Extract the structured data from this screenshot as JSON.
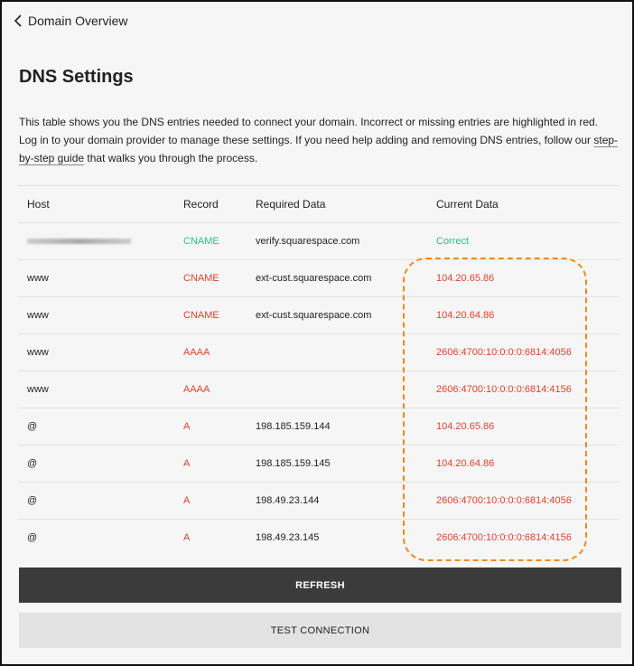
{
  "nav": {
    "back_label": "Domain Overview"
  },
  "page": {
    "title": "DNS Settings",
    "description_before": "This table shows you the DNS entries needed to connect your domain. Incorrect or missing entries are highlighted in red. Log in to your domain provider to manage these settings. If you need help adding and removing DNS entries, follow our ",
    "link_text": "step-by-step guide",
    "description_after": " that walks you through the process."
  },
  "colors": {
    "error": "#e0412d",
    "ok": "#2cbf7e",
    "highlight": "#f08a1c"
  },
  "table": {
    "headers": [
      "Host",
      "Record",
      "Required Data",
      "Current Data"
    ],
    "rows": [
      {
        "host": "",
        "host_redacted": true,
        "record": "CNAME",
        "required": "verify.squarespace.com",
        "current": "Correct",
        "status": "ok"
      },
      {
        "host": "www",
        "record": "CNAME",
        "required": "ext-cust.squarespace.com",
        "current": "104.20.65.86",
        "status": "error"
      },
      {
        "host": "www",
        "record": "CNAME",
        "required": "ext-cust.squarespace.com",
        "current": "104.20.64.86",
        "status": "error"
      },
      {
        "host": "www",
        "record": "AAAA",
        "required": "",
        "current": "2606:4700:10:0:0:0:6814:4056",
        "status": "error"
      },
      {
        "host": "www",
        "record": "AAAA",
        "required": "",
        "current": "2606:4700:10:0:0:0:6814:4156",
        "status": "error"
      },
      {
        "host": "@",
        "record": "A",
        "required": "198.185.159.144",
        "current": "104.20.65.86",
        "status": "error"
      },
      {
        "host": "@",
        "record": "A",
        "required": "198.185.159.145",
        "current": "104.20.64.86",
        "status": "error"
      },
      {
        "host": "@",
        "record": "A",
        "required": "198.49.23.144",
        "current": "2606:4700:10:0:0:0:6814:4056",
        "status": "error"
      },
      {
        "host": "@",
        "record": "A",
        "required": "198.49.23.145",
        "current": "2606:4700:10:0:0:0:6814:4156",
        "status": "error"
      }
    ]
  },
  "buttons": {
    "refresh": "REFRESH",
    "test": "TEST CONNECTION"
  }
}
